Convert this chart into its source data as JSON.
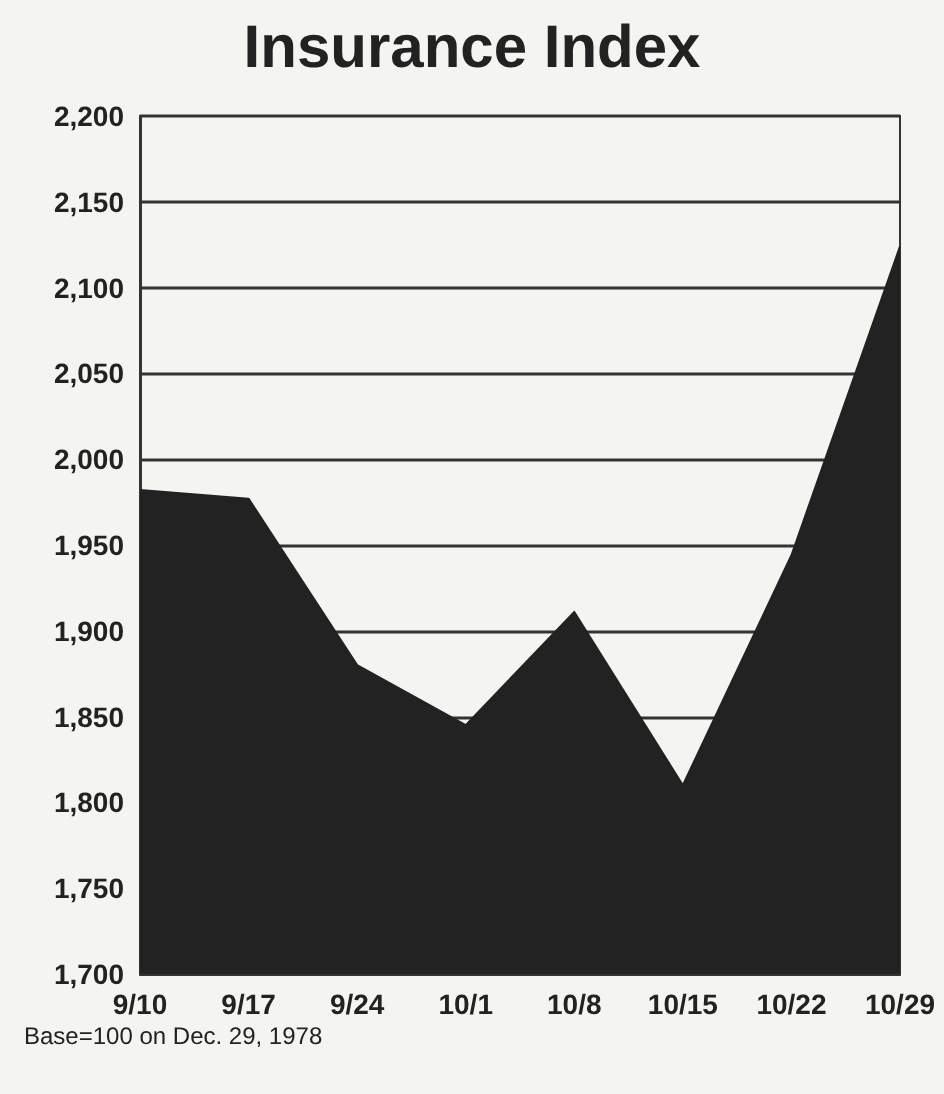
{
  "chart_data": {
    "type": "area",
    "title": "Insurance Index",
    "categories": [
      "9/10",
      "9/17",
      "9/24",
      "10/1",
      "10/8",
      "10/15",
      "10/22",
      "10/29"
    ],
    "values": [
      1982,
      1977,
      1880,
      1845,
      1911,
      1810,
      1944,
      2124
    ],
    "color": "#222222",
    "ylim": [
      1700,
      2200
    ],
    "yticks": [
      {
        "value": 1700,
        "label": "1,700"
      },
      {
        "value": 1750,
        "label": "1,750"
      },
      {
        "value": 1800,
        "label": "1,800"
      },
      {
        "value": 1850,
        "label": "1,850"
      },
      {
        "value": 1900,
        "label": "1,900"
      },
      {
        "value": 1950,
        "label": "1,950"
      },
      {
        "value": 2000,
        "label": "2,000"
      },
      {
        "value": 2050,
        "label": "2,050"
      },
      {
        "value": 2100,
        "label": "2,100"
      },
      {
        "value": 2150,
        "label": "2,150"
      },
      {
        "value": 2200,
        "label": "2,200"
      }
    ],
    "grid": "y",
    "marker": "none",
    "annotations": [
      "Base=100 on Dec. 29, 1978"
    ]
  }
}
